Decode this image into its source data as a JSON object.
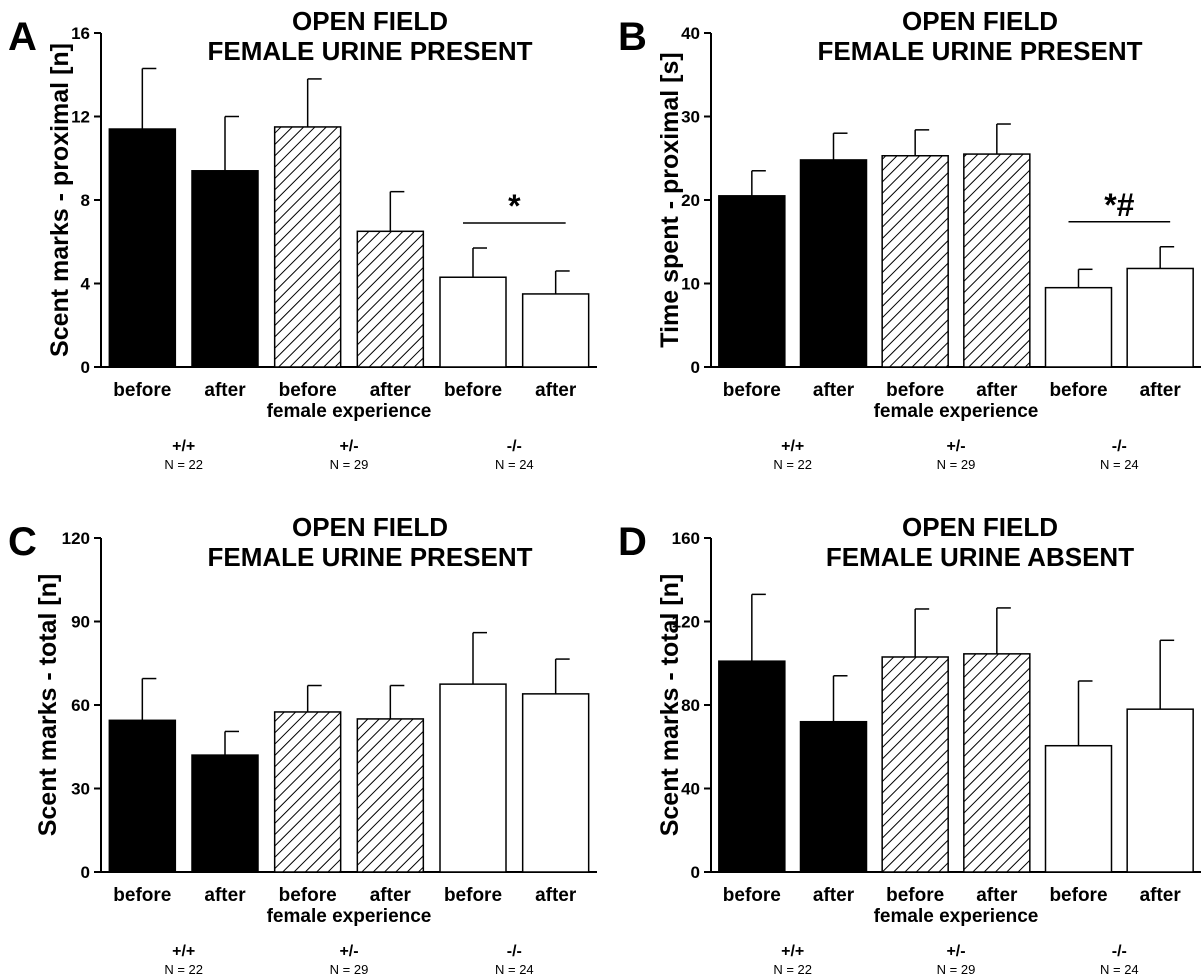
{
  "chart_data": [
    {
      "panel": "A",
      "type": "bar",
      "title_lines": [
        "OPEN FIELD",
        "FEMALE URINE PRESENT"
      ],
      "ylabel": "Scent marks - proximal [n]",
      "ylim": [
        0,
        16
      ],
      "yticks": [
        "0",
        "4",
        "8",
        "12",
        "16"
      ],
      "categories": [
        "before",
        "after",
        "before",
        "after",
        "before",
        "after"
      ],
      "xlabel": "female experience",
      "values": [
        11.4,
        9.4,
        11.5,
        6.5,
        4.3,
        3.5
      ],
      "errors": [
        2.9,
        2.6,
        2.3,
        1.9,
        1.4,
        1.1
      ],
      "fills": [
        "solid",
        "solid",
        "hatch",
        "hatch",
        "open",
        "open"
      ],
      "significance": "*",
      "groups": [
        {
          "genotype": "+/+",
          "n": "N = 22"
        },
        {
          "genotype": "+/-",
          "n": "N = 29"
        },
        {
          "genotype": "-/-",
          "n": "N = 24"
        }
      ]
    },
    {
      "panel": "B",
      "type": "bar",
      "title_lines": [
        "OPEN FIELD",
        "FEMALE URINE PRESENT"
      ],
      "ylabel": "Time spent - proximal [s]",
      "ylim": [
        0,
        40
      ],
      "yticks": [
        "0",
        "10",
        "20",
        "30",
        "40"
      ],
      "categories": [
        "before",
        "after",
        "before",
        "after",
        "before",
        "after"
      ],
      "xlabel": "female experience",
      "values": [
        20.5,
        24.8,
        25.3,
        25.5,
        9.5,
        11.8
      ],
      "errors": [
        3.0,
        3.2,
        3.1,
        3.6,
        2.2,
        2.6
      ],
      "fills": [
        "solid",
        "solid",
        "hatch",
        "hatch",
        "open",
        "open"
      ],
      "significance": "*#",
      "groups": [
        {
          "genotype": "+/+",
          "n": "N = 22"
        },
        {
          "genotype": "+/-",
          "n": "N = 29"
        },
        {
          "genotype": "-/-",
          "n": "N = 24"
        }
      ]
    },
    {
      "panel": "C",
      "type": "bar",
      "title_lines": [
        "OPEN FIELD",
        "FEMALE URINE PRESENT"
      ],
      "ylabel": "Scent marks - total [n]",
      "ylim": [
        0,
        120
      ],
      "yticks": [
        "0",
        "30",
        "60",
        "90",
        "120"
      ],
      "categories": [
        "before",
        "after",
        "before",
        "after",
        "before",
        "after"
      ],
      "xlabel": "female experience",
      "values": [
        54.5,
        42,
        57.5,
        55,
        67.5,
        64
      ],
      "errors": [
        15,
        8.5,
        9.5,
        12,
        18.5,
        12.5
      ],
      "fills": [
        "solid",
        "solid",
        "hatch",
        "hatch",
        "open",
        "open"
      ],
      "significance": "",
      "groups": [
        {
          "genotype": "+/+",
          "n": "N = 22"
        },
        {
          "genotype": "+/-",
          "n": "N = 29"
        },
        {
          "genotype": "-/-",
          "n": "N = 24"
        }
      ]
    },
    {
      "panel": "D",
      "type": "bar",
      "title_lines": [
        "OPEN FIELD",
        "FEMALE URINE ABSENT"
      ],
      "ylabel": "Scent marks - total [n]",
      "ylim": [
        0,
        160
      ],
      "yticks": [
        "0",
        "40",
        "80",
        "120",
        "160"
      ],
      "categories": [
        "before",
        "after",
        "before",
        "after",
        "before",
        "after"
      ],
      "xlabel": "female experience",
      "values": [
        101,
        72,
        103,
        104.5,
        60.5,
        78
      ],
      "errors": [
        32,
        22,
        23,
        22,
        31,
        33
      ],
      "fills": [
        "solid",
        "solid",
        "hatch",
        "hatch",
        "open",
        "open"
      ],
      "significance": "",
      "groups": [
        {
          "genotype": "+/+",
          "n": "N = 22"
        },
        {
          "genotype": "+/-",
          "n": "N = 29"
        },
        {
          "genotype": "-/-",
          "n": "N = 24"
        }
      ]
    }
  ]
}
